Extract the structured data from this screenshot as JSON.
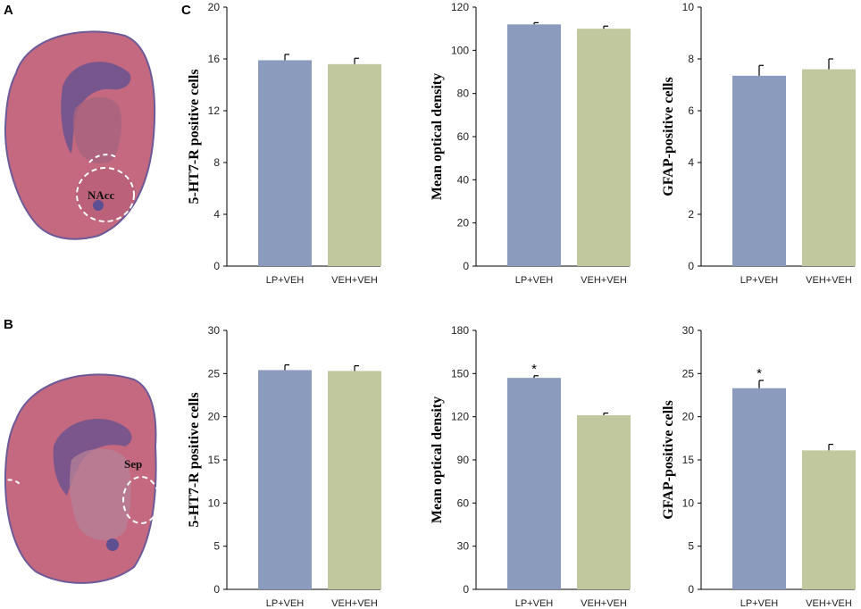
{
  "panels": {
    "a": "A",
    "b": "B",
    "c": "C"
  },
  "brain_images": {
    "top": {
      "region_label": "NAcc"
    },
    "bottom": {
      "region_label": "Sep"
    }
  },
  "colors": {
    "lp_bar": "#8a9bbd",
    "veh_bar": "#c2c89d",
    "axis": "#000000",
    "tissue": "#c0697d",
    "tissue_dark": "#5b4b8c"
  },
  "chart_data": [
    {
      "type": "bar",
      "categories": [
        "LP+VEH",
        "VEH+VEH"
      ],
      "values": [
        15.9,
        15.6
      ],
      "errors": [
        0.45,
        0.45
      ],
      "annotations": [
        "",
        ""
      ],
      "ylabel": "5-HT7-R positive cells",
      "ylim": [
        0,
        20
      ],
      "yticks": [
        0,
        4,
        8,
        12,
        16,
        20
      ]
    },
    {
      "type": "bar",
      "categories": [
        "LP+VEH",
        "VEH+VEH"
      ],
      "values": [
        112,
        110
      ],
      "errors": [
        0.8,
        1.2
      ],
      "annotations": [
        "",
        ""
      ],
      "ylabel": "Mean optical density",
      "ylim": [
        0,
        120
      ],
      "yticks": [
        0,
        20,
        40,
        60,
        80,
        100,
        120
      ]
    },
    {
      "type": "bar",
      "categories": [
        "LP+VEH",
        "VEH+VEH"
      ],
      "values": [
        7.35,
        7.6
      ],
      "errors": [
        0.4,
        0.4
      ],
      "annotations": [
        "",
        ""
      ],
      "ylabel": "GFAP-positive cells",
      "ylim": [
        0,
        10
      ],
      "yticks": [
        0,
        2,
        4,
        6,
        8,
        10
      ]
    },
    {
      "type": "bar",
      "categories": [
        "LP+VEH",
        "VEH+VEH"
      ],
      "values": [
        25.4,
        25.3
      ],
      "errors": [
        0.6,
        0.6
      ],
      "annotations": [
        "",
        ""
      ],
      "ylabel": "5-HT7-R positive cells",
      "ylim": [
        0,
        30
      ],
      "yticks": [
        0,
        5,
        10,
        15,
        20,
        25,
        30
      ]
    },
    {
      "type": "bar",
      "categories": [
        "LP+VEH",
        "VEH+VEH"
      ],
      "values": [
        147,
        121
      ],
      "errors": [
        1.5,
        1.5
      ],
      "annotations": [
        "*",
        ""
      ],
      "ylabel": "Mean optical density",
      "ylim": [
        0,
        180
      ],
      "yticks": [
        0,
        30,
        60,
        90,
        120,
        150,
        180
      ]
    },
    {
      "type": "bar",
      "categories": [
        "LP+VEH",
        "VEH+VEH"
      ],
      "values": [
        23.3,
        16.1
      ],
      "errors": [
        0.9,
        0.7
      ],
      "annotations": [
        "*",
        ""
      ],
      "ylabel": "GFAP-positive cells",
      "ylim": [
        0,
        30
      ],
      "yticks": [
        0,
        5,
        10,
        15,
        20,
        25,
        30
      ]
    }
  ]
}
